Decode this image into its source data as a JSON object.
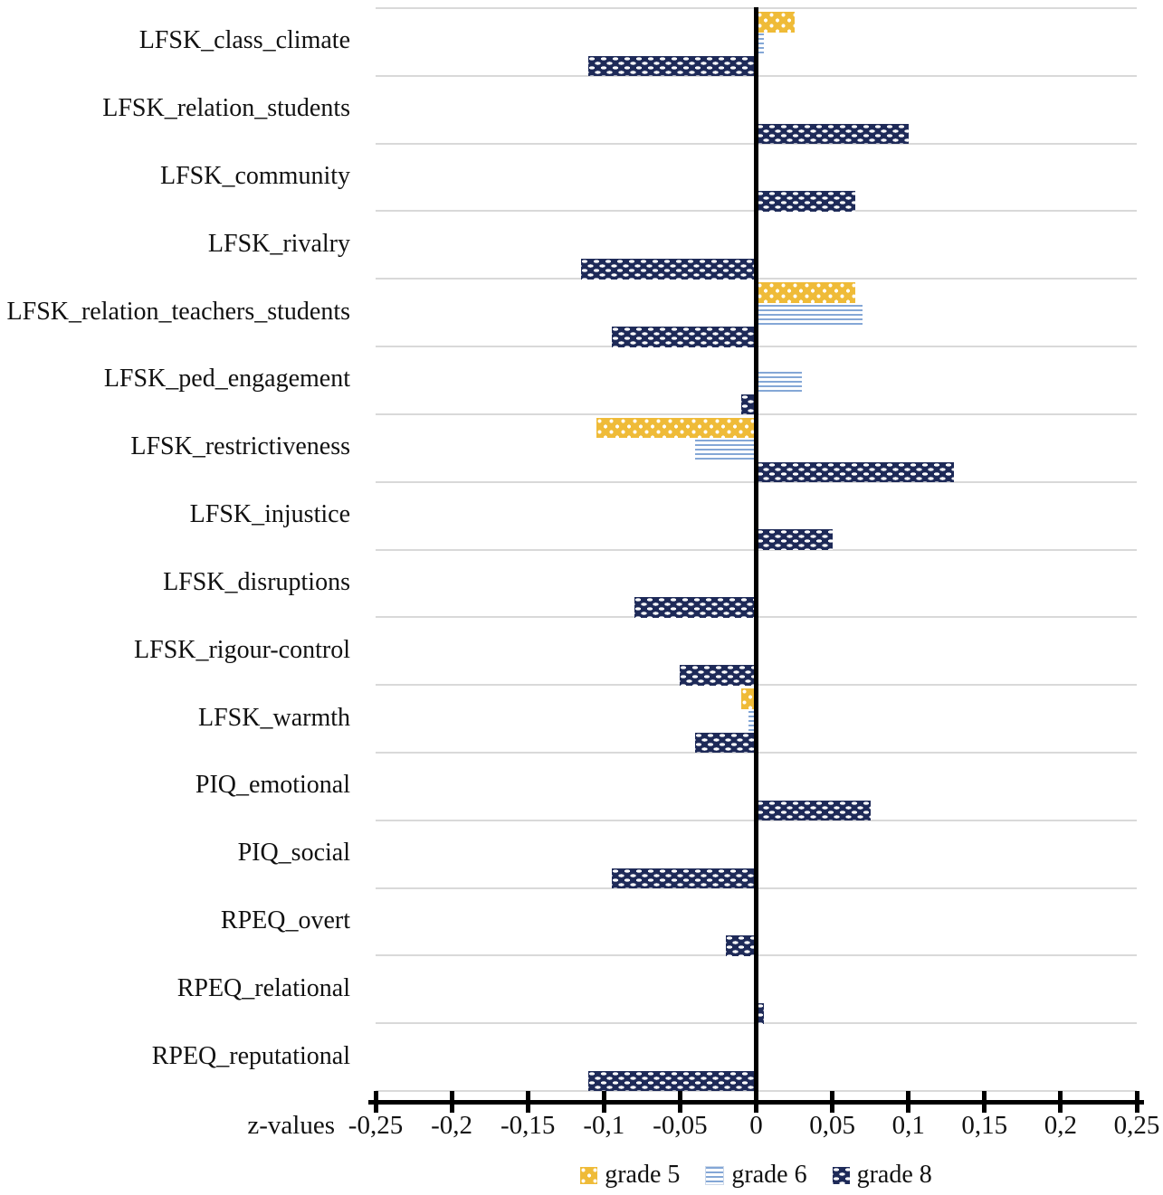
{
  "chart_data": {
    "type": "bar",
    "orientation": "horizontal",
    "title": "",
    "xlabel": "z-values",
    "xlim": [
      -0.25,
      0.25
    ],
    "x_tick_values": [
      -0.25,
      -0.2,
      -0.15,
      -0.1,
      -0.05,
      0,
      0.05,
      0.1,
      0.15,
      0.2,
      0.25
    ],
    "x_tick_labels": [
      "-0,25",
      "-0,2",
      "-0,15",
      "-0,1",
      "-0,05",
      "0",
      "0,05",
      "0,1",
      "0,15",
      "0,2",
      "0,25"
    ],
    "decimal_separator": ",",
    "categories": [
      "LFSK_class_climate",
      "LFSK_relation_students",
      "LFSK_community",
      "LFSK_rivalry",
      "LFSK_relation_teachers_students",
      "LFSK_ped_engagement",
      "LFSK_restrictiveness",
      "LFSK_injustice",
      "LFSK_disruptions",
      "LFSK_rigour-control",
      "LFSK_warmth",
      "PIQ_emotional",
      "PIQ_social",
      "RPEQ_overt",
      "RPEQ_relational",
      "RPEQ_reputational"
    ],
    "series": [
      {
        "name": "grade 5",
        "color": "#efbb38",
        "pattern": "yellow-with-white-dots",
        "values": [
          0.025,
          0,
          0,
          0,
          0.065,
          0,
          -0.105,
          0,
          0,
          0,
          -0.01,
          0,
          0,
          0,
          0,
          0
        ]
      },
      {
        "name": "grade 6",
        "color": "#84a7d6",
        "pattern": "light-blue-horizontal-stripes",
        "values": [
          0.005,
          0,
          0,
          0,
          0.07,
          0.03,
          -0.04,
          0,
          0,
          0,
          -0.005,
          0,
          0,
          0,
          0,
          0
        ]
      },
      {
        "name": "grade 8",
        "color": "#1e2a58",
        "pattern": "navy-white-dash-checker",
        "values": [
          -0.11,
          0.1,
          0.065,
          -0.115,
          -0.095,
          -0.01,
          0.13,
          0.05,
          -0.08,
          -0.05,
          -0.04,
          0.075,
          -0.095,
          -0.02,
          0.005,
          -0.11
        ]
      }
    ],
    "legend_position": "bottom-center",
    "grid": "horizontal-category-separator-lines",
    "zero_line": true
  },
  "colors": {
    "grade5": "#efbb38",
    "grade6": "#84a7d6",
    "grade8": "#1e2a58",
    "gridline": "#d9d9d9",
    "axis": "#000000",
    "background": "#ffffff"
  },
  "legend": {
    "items": [
      {
        "label": "grade 5"
      },
      {
        "label": "grade 6"
      },
      {
        "label": "grade 8"
      }
    ]
  }
}
